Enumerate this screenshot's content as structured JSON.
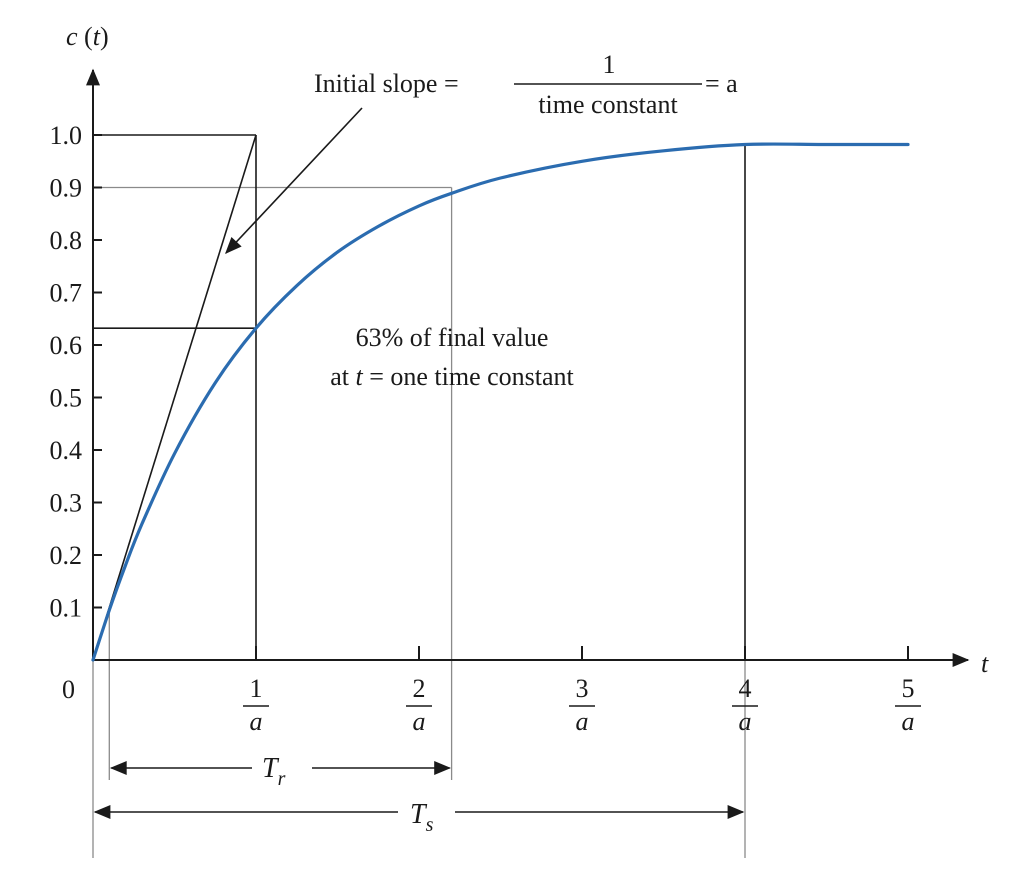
{
  "chart_data": {
    "type": "line",
    "ylabel_main": "c",
    "ylabel_arg": "t",
    "xlabel": "t",
    "xlim": [
      0,
      5
    ],
    "ylim": [
      0,
      1.0
    ],
    "origin_label": "0",
    "yticks": [
      "0.1",
      "0.2",
      "0.3",
      "0.4",
      "0.5",
      "0.6",
      "0.7",
      "0.8",
      "0.9",
      "1.0"
    ],
    "xticks": [
      {
        "value": 1,
        "num": "1",
        "den": "a"
      },
      {
        "value": 2,
        "num": "2",
        "den": "a"
      },
      {
        "value": 3,
        "num": "3",
        "den": "a"
      },
      {
        "value": 4,
        "num": "4",
        "den": "a"
      },
      {
        "value": 5,
        "num": "5",
        "den": "a"
      }
    ],
    "series": [
      {
        "color": "#2b6cb0",
        "x": [
          0,
          0.1,
          0.2,
          0.3,
          0.5,
          0.75,
          1.0,
          1.25,
          1.5,
          1.75,
          2.0,
          2.2,
          2.5,
          3.0,
          3.5,
          4.0,
          4.5,
          5.0
        ],
        "y": [
          0,
          0.095,
          0.181,
          0.259,
          0.393,
          0.528,
          0.632,
          0.713,
          0.777,
          0.826,
          0.865,
          0.889,
          0.918,
          0.95,
          0.97,
          0.982,
          0.982,
          0.982
        ]
      }
    ],
    "reference_lines": {
      "tangent_from": [
        0,
        0
      ],
      "tangent_to": [
        1,
        1.0
      ],
      "level_100": 1.0,
      "level_90": 0.9,
      "level_63": 0.632,
      "time_constant": 1,
      "rise_start": 0.1,
      "rise_end": 2.2,
      "settling": 4.0
    },
    "annotations": {
      "slope_prefix": "Initial slope =",
      "slope_num": "1",
      "slope_den": "time constant",
      "slope_suffix": "= a",
      "final_line1": "63% of final value",
      "final_line2_pre": "at",
      "final_line2_t": "t",
      "final_line2_post": "= one time constant",
      "tr_main": "T",
      "tr_sub": "r",
      "ts_main": "T",
      "ts_sub": "s"
    }
  }
}
